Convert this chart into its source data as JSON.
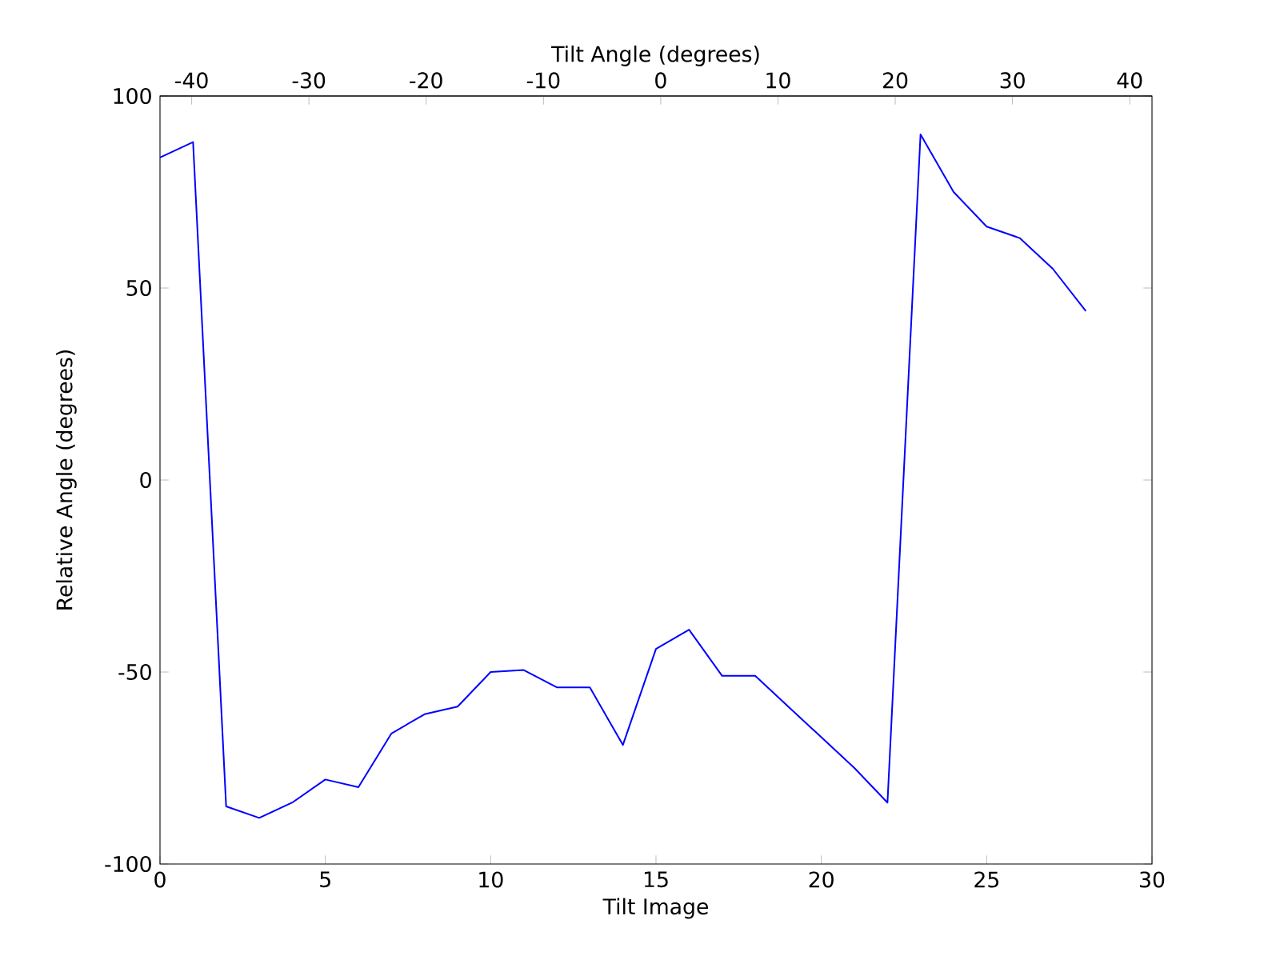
{
  "chart_data": {
    "type": "line",
    "xlabel": "Tilt Image",
    "ylabel": "Relative Angle (degrees)",
    "x2label": "Tilt Angle (degrees)",
    "xlim": [
      0,
      30
    ],
    "xticks": [
      0,
      5,
      10,
      15,
      20,
      25,
      30
    ],
    "ylim": [
      -100,
      100
    ],
    "yticks": [
      -100,
      -50,
      0,
      50,
      100
    ],
    "x2lim": [
      -42.7,
      41.9
    ],
    "x2ticks": [
      -40,
      -30,
      -20,
      -10,
      0,
      10,
      20,
      30,
      40
    ],
    "x": [
      0,
      1,
      2,
      3,
      4,
      5,
      6,
      7,
      8,
      9,
      10,
      11,
      12,
      13,
      14,
      15,
      16,
      17,
      18,
      19,
      20,
      21,
      22,
      23,
      24,
      25,
      26,
      27,
      28
    ],
    "series": [
      {
        "color": "#0000ff",
        "values": [
          84,
          88,
          -85,
          -88,
          -84,
          -78,
          -80,
          -66,
          -61,
          -59,
          -50,
          -49.5,
          -54,
          -54,
          -69,
          -44,
          -39,
          -51,
          -51,
          -59,
          -67,
          -75,
          -84,
          90,
          75,
          66,
          63,
          55,
          44
        ]
      }
    ],
    "grid": false,
    "marker": "none",
    "line_style": "solid"
  }
}
